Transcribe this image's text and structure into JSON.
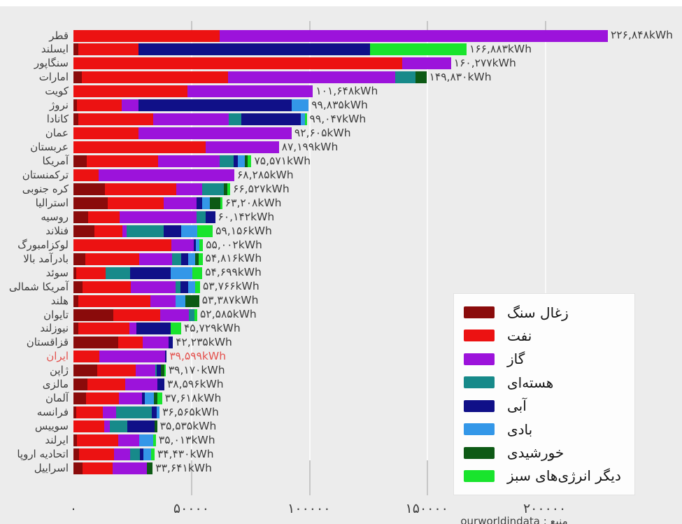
{
  "caption": "منبع : ourworldindata",
  "colors": {
    "background": "#ececec",
    "text": "#3d3d3d",
    "highlight": "#e4534f",
    "gridline": "#ffffff",
    "legend_background": "#fdfdfd"
  },
  "chart_data": {
    "type": "bar",
    "orientation": "horizontal-stacked",
    "unit": "kWh",
    "grid": true,
    "legend_position": "bottom-right",
    "xlim": [
      0,
      235000
    ],
    "x_axis": {
      "ticks": [
        {
          "value": 0,
          "label": "۰"
        },
        {
          "value": 50000,
          "label": "۵۰۰۰۰"
        },
        {
          "value": 100000,
          "label": "۱۰۰۰۰۰"
        },
        {
          "value": 150000,
          "label": "۱۵۰۰۰۰"
        },
        {
          "value": 200000,
          "label": "۲۰۰۰۰۰"
        }
      ]
    },
    "sources": [
      {
        "key": "coal",
        "label": "زغال سنگ",
        "color": "#8a0b0b"
      },
      {
        "key": "oil",
        "label": "نفت",
        "color": "#ec1212"
      },
      {
        "key": "gas",
        "label": "گاز",
        "color": "#9c13db"
      },
      {
        "key": "nuclear",
        "label": "هسته‌ای",
        "color": "#178a8a"
      },
      {
        "key": "hydro",
        "label": "آبی",
        "color": "#101088"
      },
      {
        "key": "wind",
        "label": "بادی",
        "color": "#3397e8"
      },
      {
        "key": "solar",
        "label": "خورشیدی",
        "color": "#0d5a15"
      },
      {
        "key": "other_green",
        "label": "دیگر انرژی‌های سبز",
        "color": "#19e42d"
      }
    ],
    "rows": [
      {
        "country": "قطر",
        "total": 226848,
        "total_label": "۲۲۶,۸۴۸kWh",
        "highlight": false,
        "values": [
          0,
          62000,
          164848,
          0,
          0,
          0,
          0,
          0
        ]
      },
      {
        "country": "ایسلند",
        "total": 166883,
        "total_label": "۱۶۶,۸۸۳kWh",
        "highlight": false,
        "values": [
          2000,
          25500,
          0,
          0,
          98500,
          0,
          0,
          40883
        ]
      },
      {
        "country": "سنگاپور",
        "total": 160277,
        "total_label": "۱۶۰,۲۷۷kWh",
        "highlight": false,
        "values": [
          0,
          139500,
          20777,
          0,
          0,
          0,
          0,
          0
        ]
      },
      {
        "country": "امارات",
        "total": 149830,
        "total_label": "۱۴۹,۸۳۰kWh",
        "highlight": false,
        "values": [
          3500,
          62000,
          71000,
          8700,
          0,
          0,
          4630,
          0
        ]
      },
      {
        "country": "کویت",
        "total": 101648,
        "total_label": "۱۰۱,۶۴۸kWh",
        "highlight": false,
        "values": [
          0,
          48500,
          53148,
          0,
          0,
          0,
          0,
          0
        ]
      },
      {
        "country": "نروژ",
        "total": 99835,
        "total_label": "۹۹,۸۳۵kWh",
        "highlight": false,
        "values": [
          1500,
          19000,
          7000,
          0,
          65000,
          7335,
          0,
          0
        ]
      },
      {
        "country": "کانادا",
        "total": 99047,
        "total_label": "۹۹,۰۴۷kWh",
        "highlight": false,
        "values": [
          2000,
          31800,
          32100,
          5300,
          25200,
          2000,
          0,
          647
        ]
      },
      {
        "country": "عمان",
        "total": 92605,
        "total_label": "۹۲,۶۰۵kWh",
        "highlight": false,
        "values": [
          0,
          27605,
          65000,
          0,
          0,
          0,
          0,
          0
        ]
      },
      {
        "country": "عربستان",
        "total": 87199,
        "total_label": "۸۷,۱۹۹kWh",
        "highlight": false,
        "values": [
          0,
          56199,
          31000,
          0,
          0,
          0,
          0,
          0
        ]
      },
      {
        "country": "آمریکا",
        "total": 75571,
        "total_label": "۷۵,۵۷۱kWh",
        "highlight": false,
        "values": [
          5600,
          30300,
          26100,
          5900,
          1800,
          3000,
          1200,
          1671
        ]
      },
      {
        "country": "ترکمنستان",
        "total": 68285,
        "total_label": "۶۸,۲۸۵kWh",
        "highlight": false,
        "values": [
          0,
          10785,
          57500,
          0,
          0,
          0,
          0,
          0
        ]
      },
      {
        "country": "کره جنوبی",
        "total": 66527,
        "total_label": "۶۶,۵۲۷kWh",
        "highlight": false,
        "values": [
          13400,
          30300,
          11000,
          9200,
          0,
          0,
          1400,
          1227
        ]
      },
      {
        "country": "استرالیا",
        "total": 63208,
        "total_label": "۶۳,۲۰۸kWh",
        "highlight": false,
        "values": [
          14600,
          23800,
          14000,
          0,
          2100,
          3300,
          4500,
          908
        ]
      },
      {
        "country": "روسیه",
        "total": 60142,
        "total_label": "۶۰,۱۴۲kWh",
        "highlight": false,
        "values": [
          6200,
          13442,
          32700,
          3900,
          3900,
          0,
          0,
          0
        ]
      },
      {
        "country": "فنلاند",
        "total": 59156,
        "total_label": "۵۹,۱۵۶kWh",
        "highlight": false,
        "values": [
          9000,
          11700,
          1800,
          15800,
          7500,
          6900,
          0,
          6456
        ]
      },
      {
        "country": "لوکزامبورگ",
        "total": 55002,
        "total_label": "۵۵,۰۰۲kWh",
        "highlight": false,
        "values": [
          0,
          41500,
          9500,
          0,
          1000,
          1500,
          0,
          1502
        ]
      },
      {
        "country": "بادرآمد بالا",
        "total": 54816,
        "total_label": "۵۴,۸۱۶kWh",
        "highlight": false,
        "values": [
          5000,
          22900,
          14000,
          3900,
          3000,
          3000,
          1500,
          1516
        ]
      },
      {
        "country": "سوئد",
        "total": 54699,
        "total_label": "۵۴,۶۹۹kWh",
        "highlight": false,
        "values": [
          1200,
          12500,
          0,
          10400,
          17200,
          9200,
          0,
          4199
        ]
      },
      {
        "country": "آمریکا شمالی",
        "total": 53766,
        "total_label": "۵۳,۷۶۶kWh",
        "highlight": false,
        "values": [
          3900,
          20500,
          19000,
          2100,
          3300,
          3000,
          0,
          1966
        ]
      },
      {
        "country": "هلند",
        "total": 53387,
        "total_label": "۵۳,۳۸۷kWh",
        "highlight": false,
        "values": [
          2100,
          30600,
          10700,
          0,
          0,
          4200,
          5787,
          0
        ]
      },
      {
        "country": "تایوان",
        "total": 52585,
        "total_label": "۵۲,۵۸۵kWh",
        "highlight": false,
        "values": [
          16900,
          19800,
          12200,
          2400,
          0,
          0,
          0,
          1285
        ]
      },
      {
        "country": "نیوزلند",
        "total": 45729,
        "total_label": "۴۵,۷۲۹kWh",
        "highlight": false,
        "values": [
          2100,
          21700,
          3000,
          0,
          14600,
          0,
          0,
          4329
        ]
      },
      {
        "country": "قزاقستان",
        "total": 42235,
        "total_label": "۴۲,۲۳۵kWh",
        "highlight": false,
        "values": [
          19000,
          10400,
          11000,
          0,
          1835,
          0,
          0,
          0
        ]
      },
      {
        "country": "ایران",
        "total": 39599,
        "total_label": "۳۹,۵۹۹kWh",
        "highlight": true,
        "values": [
          0,
          11000,
          28000,
          0,
          599,
          0,
          0,
          0
        ]
      },
      {
        "country": "ژاپن",
        "total": 39170,
        "total_label": "۳۹,۱۷۰kWh",
        "highlight": false,
        "values": [
          10000,
          16500,
          8200,
          500,
          1900,
          0,
          1500,
          570
        ]
      },
      {
        "country": "مالزی",
        "total": 38596,
        "total_label": "۳۸,۵۹۶kWh",
        "highlight": false,
        "values": [
          6000,
          16000,
          13500,
          0,
          3096,
          0,
          0,
          0
        ]
      },
      {
        "country": "آلمان",
        "total": 37618,
        "total_label": "۳۷,۶۱۸kWh",
        "highlight": false,
        "values": [
          5200,
          14000,
          9800,
          0,
          1200,
          3900,
          1500,
          2018
        ]
      },
      {
        "country": "فرانسه",
        "total": 36565,
        "total_label": "۳۶,۵۶۵kWh",
        "highlight": false,
        "values": [
          1200,
          11300,
          5700,
          15000,
          2165,
          1200,
          0,
          0
        ]
      },
      {
        "country": "سوییس",
        "total": 35535,
        "total_label": "۳۵,۵۳۵kWh",
        "highlight": false,
        "values": [
          0,
          13000,
          2500,
          7500,
          11535,
          0,
          1000,
          0
        ]
      },
      {
        "country": "ایرلند",
        "total": 35013,
        "total_label": "۳۵,۰۱۳kWh",
        "highlight": false,
        "values": [
          1500,
          17500,
          9000,
          0,
          0,
          6000,
          0,
          1013
        ]
      },
      {
        "country": "اتحادیه اروپا",
        "total": 34430,
        "total_label": "۳۴,۴۳۰kWh",
        "highlight": false,
        "values": [
          2400,
          14900,
          6800,
          4200,
          1500,
          3300,
          0,
          1330
        ]
      },
      {
        "country": "اسراییل",
        "total": 33641,
        "total_label": "۳۳,۶۴۱kWh",
        "highlight": false,
        "values": [
          3900,
          12800,
          14500,
          0,
          0,
          0,
          2441,
          0
        ]
      }
    ]
  }
}
